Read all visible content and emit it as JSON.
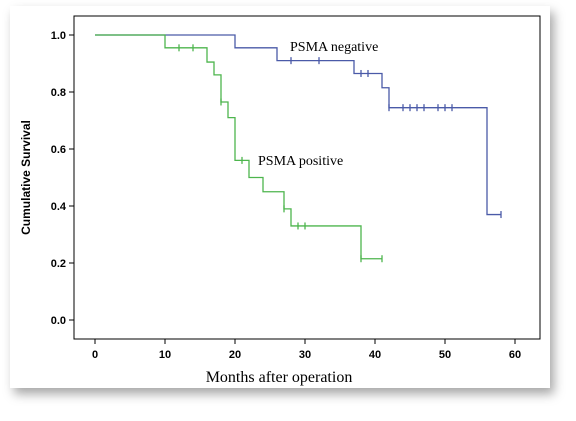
{
  "chart_data": {
    "type": "line",
    "subtype": "kaplan-meier step",
    "xlabel": "Months after operation",
    "ylabel": "Cumulative Survival",
    "xlim": [
      0,
      60
    ],
    "ylim": [
      0,
      1.0
    ],
    "xticks": [
      "0",
      "10",
      "20",
      "30",
      "40",
      "50",
      "60"
    ],
    "yticks": [
      "0.0",
      "0.2",
      "0.4",
      "0.6",
      "0.8",
      "1.0"
    ],
    "grid": false,
    "legend": "none (series labeled inline)",
    "series": [
      {
        "name": "PSMA negative",
        "color": "#4a5aa8",
        "steps": [
          [
            0,
            1.0
          ],
          [
            20,
            0.955
          ],
          [
            26,
            0.91
          ],
          [
            37,
            0.865
          ],
          [
            41,
            0.815
          ],
          [
            42,
            0.745
          ],
          [
            56,
            0.37
          ],
          [
            58,
            0.37
          ]
        ],
        "censored": [
          [
            28,
            0.91
          ],
          [
            32,
            0.91
          ],
          [
            38,
            0.865
          ],
          [
            39,
            0.865
          ],
          [
            42,
            0.745
          ],
          [
            44,
            0.745
          ],
          [
            45,
            0.745
          ],
          [
            46,
            0.745
          ],
          [
            47,
            0.745
          ],
          [
            49,
            0.745
          ],
          [
            50,
            0.745
          ],
          [
            51,
            0.745
          ],
          [
            58,
            0.37
          ]
        ]
      },
      {
        "name": "PSMA positive",
        "color": "#4db54d",
        "steps": [
          [
            0,
            1.0
          ],
          [
            10,
            0.955
          ],
          [
            16,
            0.905
          ],
          [
            17,
            0.86
          ],
          [
            18,
            0.765
          ],
          [
            19,
            0.71
          ],
          [
            20,
            0.56
          ],
          [
            22,
            0.5
          ],
          [
            24,
            0.45
          ],
          [
            27,
            0.39
          ],
          [
            28,
            0.33
          ],
          [
            38,
            0.215
          ],
          [
            41,
            0.215
          ]
        ],
        "censored": [
          [
            12,
            0.955
          ],
          [
            14,
            0.955
          ],
          [
            18,
            0.765
          ],
          [
            21,
            0.56
          ],
          [
            27,
            0.39
          ],
          [
            29,
            0.33
          ],
          [
            30,
            0.33
          ],
          [
            38,
            0.215
          ],
          [
            41,
            0.215
          ]
        ]
      }
    ]
  }
}
